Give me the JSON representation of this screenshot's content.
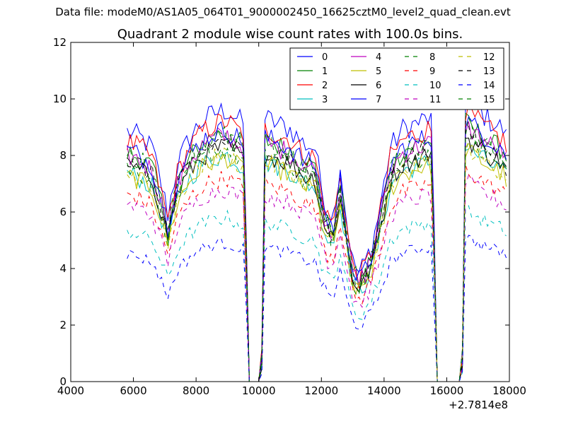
{
  "suptitle": "Data file: modeM0/AS1A05_064T01_9000002450_16625cztM0_level2_quad_clean.evt",
  "chart_data": {
    "type": "line",
    "title": "Quadrant 2 module wise count rates with 100.0s bins.",
    "xlabel": "",
    "ylabel": "",
    "xlim": [
      4000,
      18000
    ],
    "ylim": [
      0,
      12
    ],
    "xticks": [
      4000,
      6000,
      8000,
      10000,
      12000,
      14000,
      16000,
      18000
    ],
    "yticks": [
      0,
      2,
      4,
      6,
      8,
      10,
      12
    ],
    "x_offset_label": "+2.7814e8",
    "legend_position": "top-right",
    "legend_columns": 4,
    "x_profile": [
      5800,
      6200,
      6600,
      6900,
      7100,
      7400,
      7800,
      8200,
      8600,
      9000,
      9400,
      9550,
      9650,
      9700,
      10000,
      10100,
      10200,
      10600,
      11000,
      11400,
      11800,
      12000,
      12200,
      12400,
      12600,
      12800,
      13000,
      13200,
      13400,
      13600,
      13800,
      14200,
      14600,
      15000,
      15400,
      15550,
      15650,
      15700,
      16400,
      16500,
      16600,
      17000,
      17400,
      17800,
      17950
    ],
    "profile": [
      0.92,
      0.9,
      0.86,
      0.72,
      0.62,
      0.8,
      0.9,
      0.96,
      0.99,
      1.0,
      0.96,
      0.95,
      0.1,
      0,
      0,
      0.1,
      0.97,
      0.95,
      0.93,
      0.88,
      0.86,
      0.72,
      0.63,
      0.62,
      0.8,
      0.6,
      0.44,
      0.4,
      0.44,
      0.5,
      0.6,
      0.86,
      0.93,
      0.95,
      0.97,
      0.96,
      0.1,
      0,
      0,
      0.1,
      1.04,
      1.0,
      0.96,
      0.93,
      0.88
    ],
    "series": [
      {
        "name": "0",
        "level": 9.6,
        "color": "#0000ff",
        "dash": "solid"
      },
      {
        "name": "1",
        "level": 8.8,
        "color": "#008000",
        "dash": "solid"
      },
      {
        "name": "2",
        "level": 9.2,
        "color": "#ff0000",
        "dash": "solid"
      },
      {
        "name": "3",
        "level": 8.0,
        "color": "#00bfbf",
        "dash": "solid"
      },
      {
        "name": "4",
        "level": 8.7,
        "color": "#bf00bf",
        "dash": "solid"
      },
      {
        "name": "5",
        "level": 7.9,
        "color": "#bfbf00",
        "dash": "solid"
      },
      {
        "name": "6",
        "level": 8.3,
        "color": "#000000",
        "dash": "solid"
      },
      {
        "name": "7",
        "level": 8.9,
        "color": "#0000ff",
        "dash": "solid"
      },
      {
        "name": "8",
        "level": 8.2,
        "color": "#008000",
        "dash": "dashed"
      },
      {
        "name": "9",
        "level": 7.2,
        "color": "#ff0000",
        "dash": "dashed"
      },
      {
        "name": "10",
        "level": 5.8,
        "color": "#00bfbf",
        "dash": "dashed"
      },
      {
        "name": "11",
        "level": 6.8,
        "color": "#bf00bf",
        "dash": "dashed"
      },
      {
        "name": "12",
        "level": 8.0,
        "color": "#bfbf00",
        "dash": "dashed"
      },
      {
        "name": "13",
        "level": 8.5,
        "color": "#000000",
        "dash": "dashed"
      },
      {
        "name": "14",
        "level": 4.9,
        "color": "#0000ff",
        "dash": "dashed"
      },
      {
        "name": "15",
        "level": 8.7,
        "color": "#008000",
        "dash": "dashed"
      }
    ]
  }
}
